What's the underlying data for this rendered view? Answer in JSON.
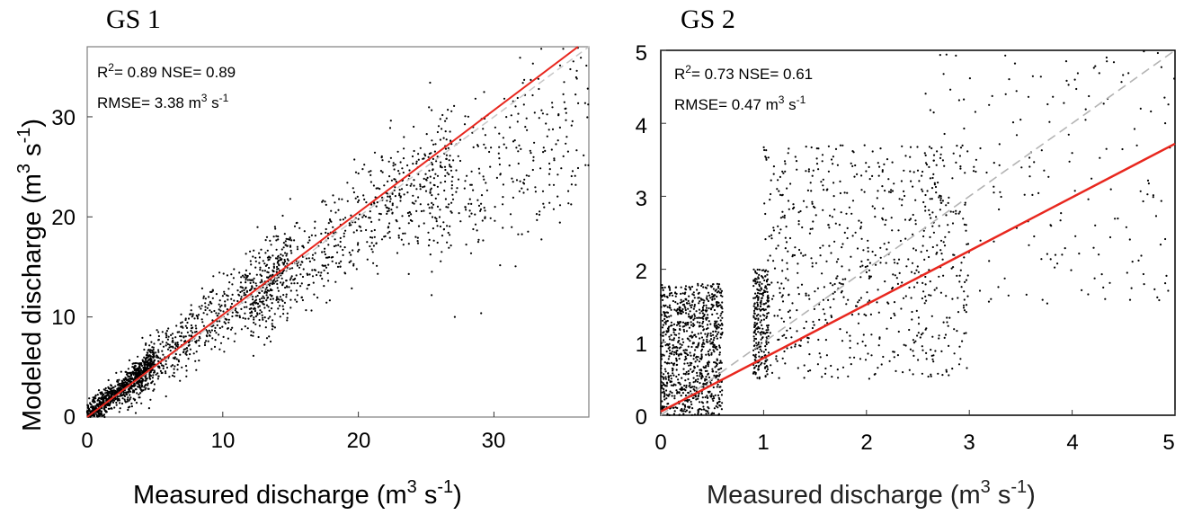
{
  "chart_data": [
    {
      "type": "scatter",
      "title": "GS 1",
      "xlabel": "Measured discharge (m3 s-1)",
      "ylabel": "Modeled discharge (m3 s-1)",
      "xlim": [
        0,
        37
      ],
      "ylim": [
        0,
        37
      ],
      "xticks": [
        0,
        10,
        20,
        30
      ],
      "yticks": [
        0,
        10,
        20,
        30
      ],
      "annotations": [
        "R2= 0.89 NSE= 0.89",
        "RMSE= 3.38 m3 s-1"
      ],
      "series": [
        {
          "type": "scatter",
          "color": "#000000",
          "marker_count_approx": 2500,
          "clusters": [
            {
              "x_range": [
                0,
                5
              ],
              "y_center_slope": 1.1,
              "spread": 1.5,
              "count": 900
            },
            {
              "x_range": [
                3,
                15
              ],
              "y_center_slope": 1.05,
              "spread": 2.8,
              "count": 650
            },
            {
              "x_range": [
                12,
                27
              ],
              "y_center_slope": 0.95,
              "spread": 3.0,
              "count": 650
            },
            {
              "x_range": [
                25,
                37
              ],
              "y_center_slope": 0.8,
              "spread": 4.0,
              "count": 300
            }
          ]
        },
        {
          "type": "line",
          "role": "fit",
          "color": "#e8271e",
          "x": [
            0,
            36.2
          ],
          "y": [
            0,
            37
          ]
        },
        {
          "type": "line",
          "role": "1:1",
          "style": "dashed",
          "color": "#c8c8c8",
          "x": [
            0,
            37
          ],
          "y": [
            0,
            37
          ]
        }
      ]
    },
    {
      "type": "scatter",
      "title": "GS 2",
      "xlabel": "Measured discharge (m3 s-1)",
      "ylabel": "",
      "xlim": [
        0,
        5
      ],
      "ylim": [
        0,
        5
      ],
      "xticks": [
        0,
        1,
        2,
        3,
        4,
        5
      ],
      "yticks": [
        0,
        1,
        2,
        3,
        4,
        5
      ],
      "annotations": [
        "R2= 0.73 NSE= 0.61",
        "RMSE= 0.47 m3 s-1"
      ],
      "series": [
        {
          "type": "scatter",
          "color": "#000000",
          "marker_count_approx": 2200,
          "clusters": [
            {
              "x_range": [
                0,
                0.6
              ],
              "y_range": [
                0,
                1.8
              ],
              "count": 900
            },
            {
              "x_range": [
                0.9,
                1.05
              ],
              "y_range": [
                0.5,
                2.0
              ],
              "count": 250
            },
            {
              "x_range": [
                1,
                3
              ],
              "y_range": [
                0.5,
                3.7
              ],
              "count": 700
            },
            {
              "x_range": [
                2.5,
                5
              ],
              "y_range": [
                1.5,
                5
              ],
              "count": 200
            }
          ]
        },
        {
          "type": "line",
          "role": "fit",
          "color": "#e8271e",
          "x": [
            0,
            5
          ],
          "y": [
            0.05,
            3.72
          ]
        },
        {
          "type": "line",
          "role": "1:1",
          "style": "dashed",
          "color": "#b4b4b4",
          "x": [
            0,
            5
          ],
          "y": [
            0,
            5
          ]
        }
      ]
    }
  ]
}
